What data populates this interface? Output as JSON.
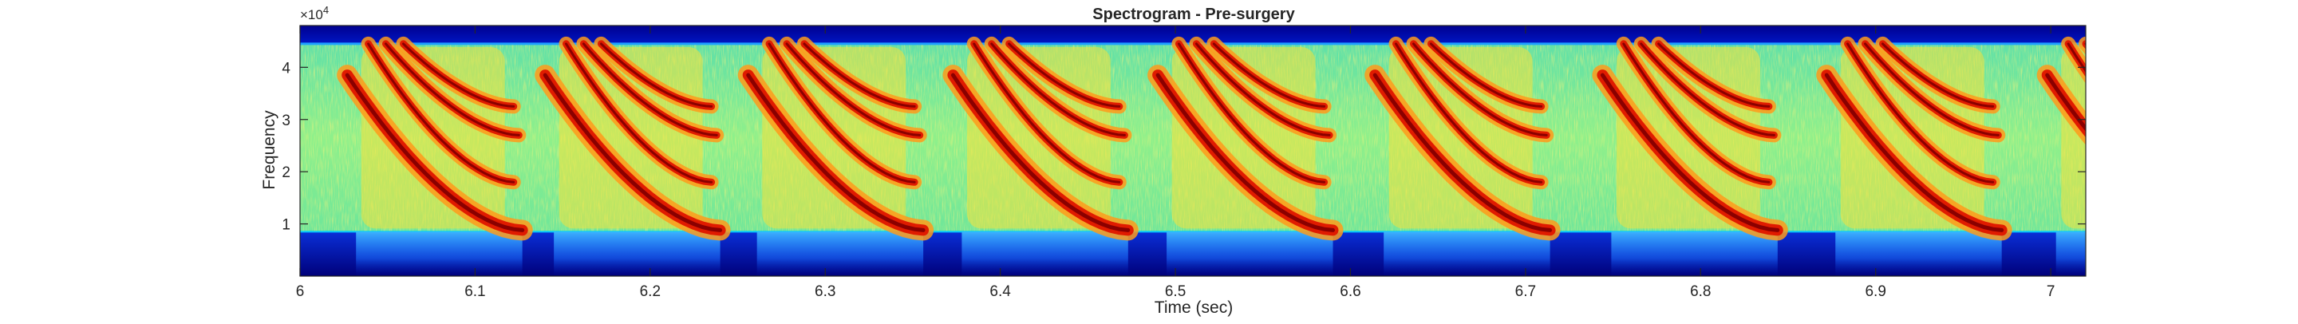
{
  "figure": {
    "title": "Spectrogram - Pre-surgery",
    "xlabel": "Time (sec)",
    "ylabel": "Frequency",
    "y_exponent_label": "×10",
    "y_exponent_power": "4"
  },
  "chart_data": {
    "type": "heatmap",
    "title": "Spectrogram - Pre-surgery",
    "xlabel": "Time (sec)",
    "ylabel": "Frequency",
    "xlim": [
      6.0,
      7.02
    ],
    "ylim": [
      0,
      48000
    ],
    "x_ticks": [
      6.0,
      6.1,
      6.2,
      6.3,
      6.4,
      6.5,
      6.6,
      6.7,
      6.8,
      6.9,
      7.0
    ],
    "x_tick_labels": [
      "6",
      "6.1",
      "6.2",
      "6.3",
      "6.4",
      "6.5",
      "6.6",
      "6.7",
      "6.8",
      "6.9",
      "7"
    ],
    "y_ticks": [
      10000,
      20000,
      30000,
      40000
    ],
    "y_tick_labels": [
      "1",
      "2",
      "3",
      "4"
    ],
    "y_multiplier": "×10^4",
    "colormap": "jet",
    "band_limits_hz": [
      8500,
      44500
    ],
    "syllable_onsets_sec": [
      6.027,
      6.14,
      6.256,
      6.373,
      6.49,
      6.614,
      6.744,
      6.872,
      6.998
    ],
    "syllable_duration_sec": 0.1,
    "harmonic_tracks": [
      {
        "name": "h1",
        "start_freq": 38500,
        "end_freq": 8800
      },
      {
        "name": "h2",
        "start_freq": 44500,
        "end_freq": 18000
      },
      {
        "name": "h3",
        "start_freq": 44500,
        "end_freq": 27000
      },
      {
        "name": "h4",
        "start_freq": 44500,
        "end_freq": 32500
      }
    ],
    "grid": false
  }
}
